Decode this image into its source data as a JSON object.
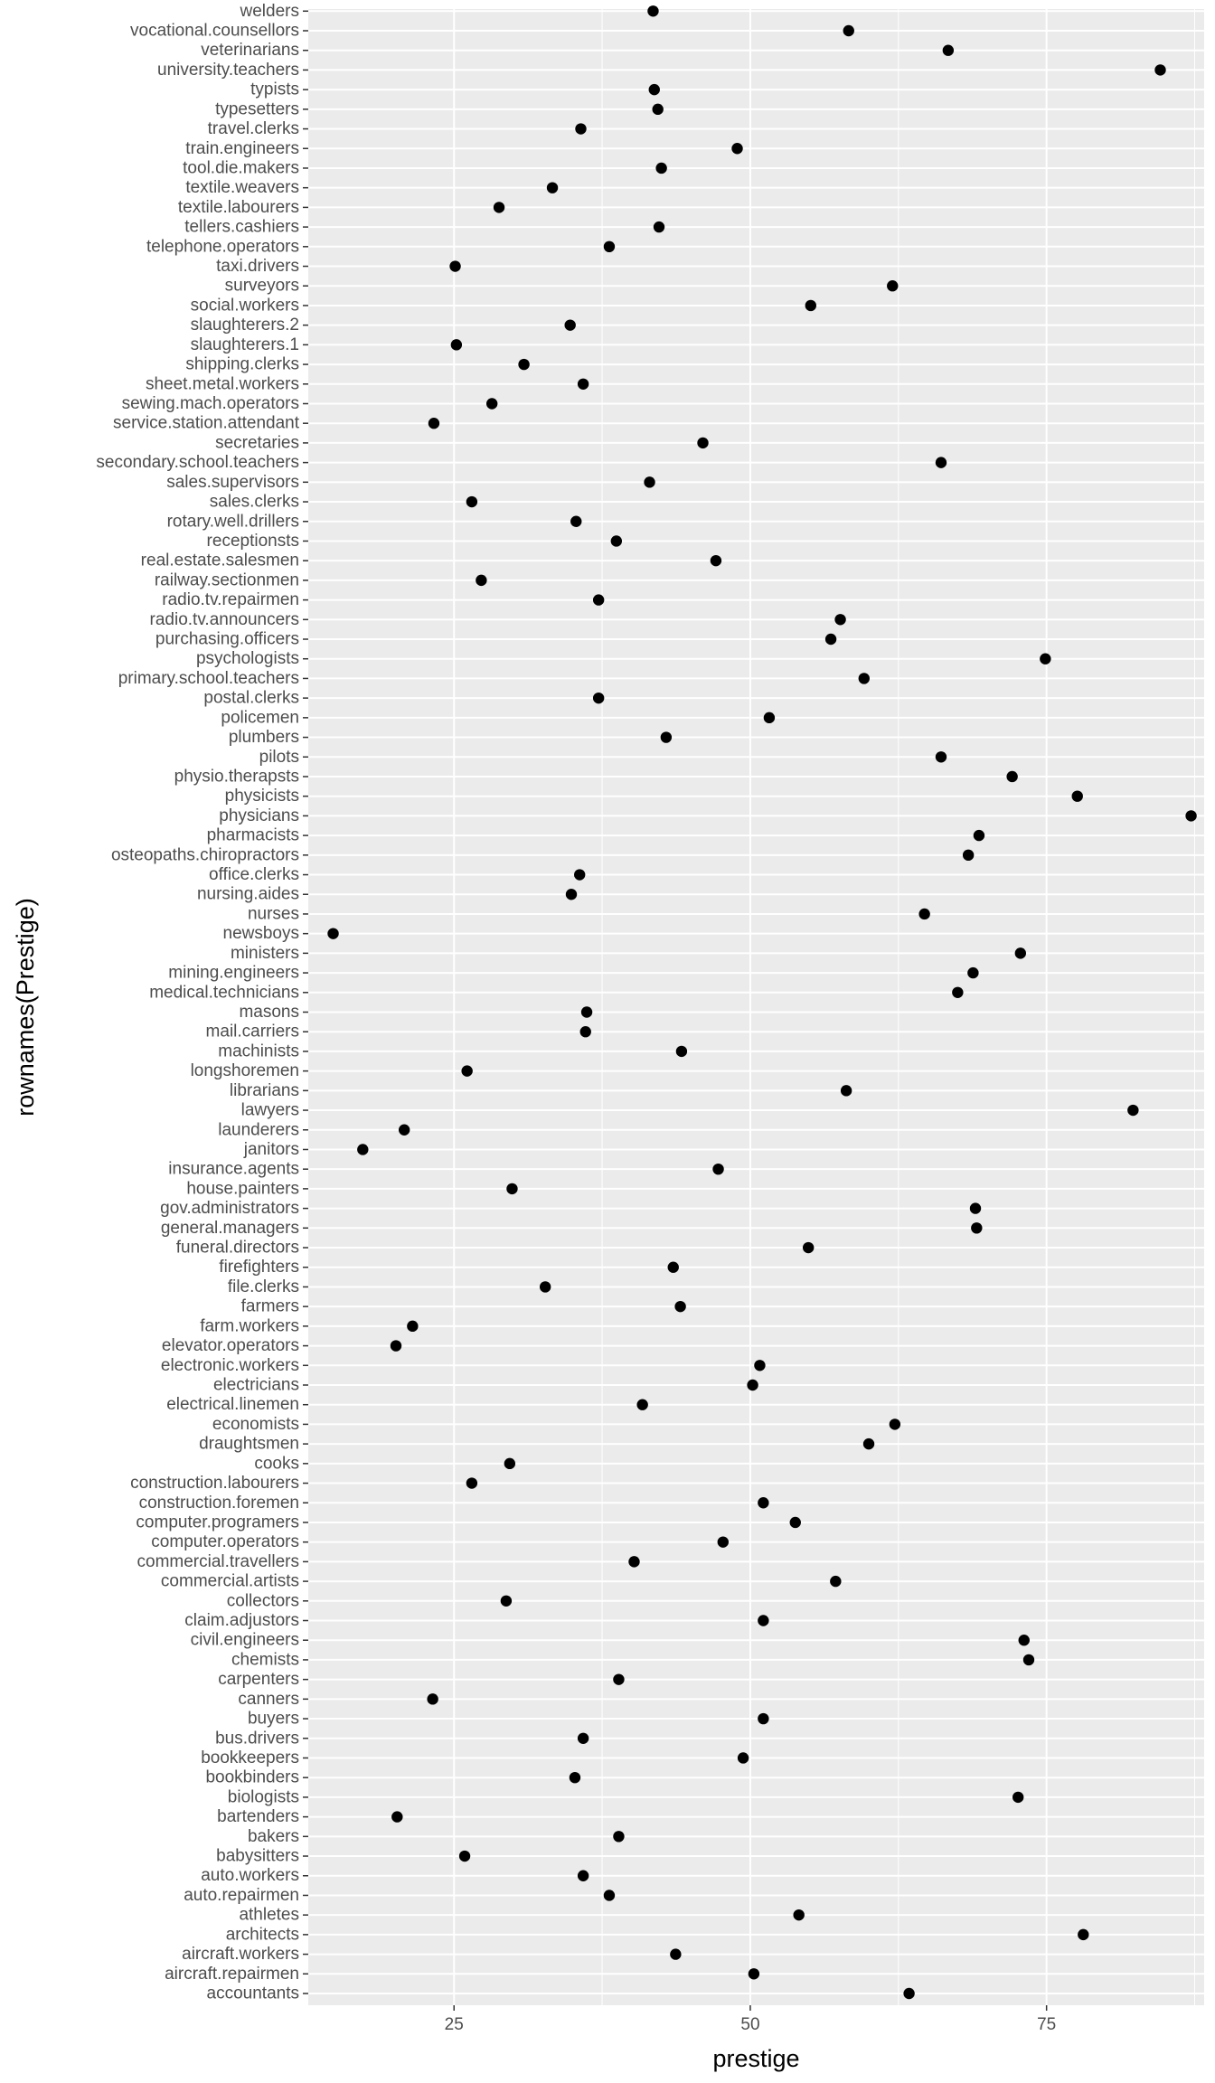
{
  "chart_data": {
    "type": "scatter",
    "xlabel": "prestige",
    "ylabel": "rownames(Prestige)",
    "xlim": [
      12.7,
      88.3
    ],
    "x_ticks": [
      25,
      50,
      75
    ],
    "grid": true,
    "legend": "none",
    "colors": {
      "panel": "#ebebeb",
      "grid": "#ffffff",
      "point": "#000000",
      "tick_text": "#4d4d4d"
    },
    "categories": [
      "accountants",
      "aircraft.repairmen",
      "aircraft.workers",
      "architects",
      "athletes",
      "auto.repairmen",
      "auto.workers",
      "babysitters",
      "bakers",
      "bartenders",
      "biologists",
      "bookbinders",
      "bookkeepers",
      "bus.drivers",
      "buyers",
      "canners",
      "carpenters",
      "chemists",
      "civil.engineers",
      "claim.adjustors",
      "collectors",
      "commercial.artists",
      "commercial.travellers",
      "computer.operators",
      "computer.programers",
      "construction.foremen",
      "construction.labourers",
      "cooks",
      "draughtsmen",
      "economists",
      "electrical.linemen",
      "electricians",
      "electronic.workers",
      "elevator.operators",
      "farm.workers",
      "farmers",
      "file.clerks",
      "firefighters",
      "funeral.directors",
      "general.managers",
      "gov.administrators",
      "house.painters",
      "insurance.agents",
      "janitors",
      "launderers",
      "lawyers",
      "librarians",
      "longshoremen",
      "machinists",
      "mail.carriers",
      "masons",
      "medical.technicians",
      "mining.engineers",
      "ministers",
      "newsboys",
      "nurses",
      "nursing.aides",
      "office.clerks",
      "osteopaths.chiropractors",
      "pharmacists",
      "physicians",
      "physicists",
      "physio.therapsts",
      "pilots",
      "plumbers",
      "policemen",
      "postal.clerks",
      "primary.school.teachers",
      "psychologists",
      "purchasing.officers",
      "radio.tv.announcers",
      "radio.tv.repairmen",
      "railway.sectionmen",
      "real.estate.salesmen",
      "receptionsts",
      "rotary.well.drillers",
      "sales.clerks",
      "sales.supervisors",
      "secondary.school.teachers",
      "secretaries",
      "service.station.attendant",
      "sewing.mach.operators",
      "sheet.metal.workers",
      "shipping.clerks",
      "slaughterers.1",
      "slaughterers.2",
      "social.workers",
      "surveyors",
      "taxi.drivers",
      "telephone.operators",
      "tellers.cashiers",
      "textile.labourers",
      "textile.weavers",
      "tool.die.makers",
      "train.engineers",
      "travel.clerks",
      "typesetters",
      "typists",
      "university.teachers",
      "veterinarians",
      "vocational.counsellors",
      "welders"
    ],
    "values": [
      63.4,
      50.3,
      43.7,
      78.1,
      54.1,
      38.1,
      35.9,
      25.9,
      38.9,
      20.2,
      72.6,
      35.2,
      49.4,
      35.9,
      51.1,
      23.2,
      38.9,
      73.5,
      73.1,
      51.1,
      29.4,
      57.2,
      40.2,
      47.7,
      53.8,
      51.1,
      26.5,
      29.7,
      60.0,
      62.2,
      40.9,
      50.2,
      50.8,
      20.1,
      21.5,
      44.1,
      32.7,
      43.5,
      54.9,
      69.1,
      69.0,
      29.9,
      47.3,
      17.3,
      20.8,
      82.3,
      58.1,
      26.1,
      44.2,
      36.1,
      36.2,
      67.5,
      68.8,
      72.8,
      14.8,
      64.7,
      34.9,
      35.6,
      68.4,
      69.3,
      87.2,
      77.6,
      72.1,
      66.1,
      42.9,
      51.6,
      37.2,
      59.6,
      74.9,
      56.8,
      57.6,
      37.2,
      27.3,
      47.1,
      38.7,
      35.3,
      26.5,
      41.5,
      66.1,
      46.0,
      23.3,
      28.2,
      35.9,
      30.9,
      25.2,
      34.8,
      55.1,
      62.0,
      25.1,
      38.1,
      42.3,
      28.8,
      33.3,
      42.5,
      48.9,
      35.7,
      42.2,
      41.9,
      84.6,
      66.7,
      58.3,
      41.8
    ]
  }
}
